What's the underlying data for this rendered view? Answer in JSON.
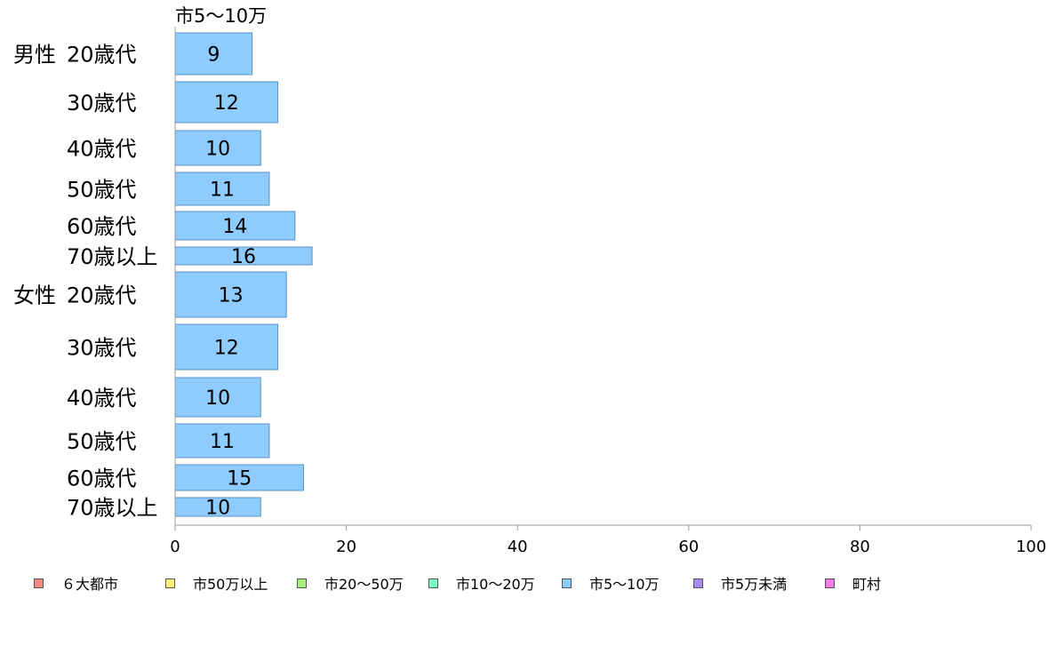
{
  "chart_data": {
    "type": "bar",
    "orientation": "horizontal",
    "series_title": "市5～10万",
    "groups": [
      {
        "name": "男性",
        "rows": [
          {
            "label": "20歳代",
            "value": 9
          },
          {
            "label": "30歳代",
            "value": 12
          },
          {
            "label": "40歳代",
            "value": 10
          },
          {
            "label": "50歳代",
            "value": 11
          },
          {
            "label": "60歳代",
            "value": 14
          },
          {
            "label": "70歳以上",
            "value": 16
          }
        ]
      },
      {
        "name": "女性",
        "rows": [
          {
            "label": "20歳代",
            "value": 13
          },
          {
            "label": "30歳代",
            "value": 12
          },
          {
            "label": "40歳代",
            "value": 10
          },
          {
            "label": "50歳代",
            "value": 11
          },
          {
            "label": "60歳代",
            "value": 15
          },
          {
            "label": "70歳以上",
            "value": 10
          }
        ]
      }
    ],
    "xlim": [
      0,
      100
    ],
    "xticks": [
      "0",
      "20",
      "40",
      "60",
      "80",
      "100"
    ],
    "grid": false,
    "legend_position": "bottom",
    "legend": [
      {
        "label": "６大都市",
        "color": "#f28b82"
      },
      {
        "label": "市50万以上",
        "color": "#fff27a"
      },
      {
        "label": "市20～50万",
        "color": "#a8f07a"
      },
      {
        "label": "市10～20万",
        "color": "#7affc8"
      },
      {
        "label": "市5～10万",
        "color": "#8ecbff"
      },
      {
        "label": "市5万未満",
        "color": "#a98cf2"
      },
      {
        "label": "町村",
        "color": "#f57ae8"
      }
    ],
    "bar_color": "#8ecbff",
    "bar_border": "#5b8fbf"
  }
}
